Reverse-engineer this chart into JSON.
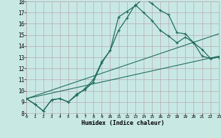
{
  "xlabel": "Humidex (Indice chaleur)",
  "xlim": [
    0,
    23
  ],
  "ylim": [
    8,
    18
  ],
  "xticks": [
    0,
    1,
    2,
    3,
    4,
    5,
    6,
    7,
    8,
    9,
    10,
    11,
    12,
    13,
    14,
    15,
    16,
    17,
    18,
    19,
    20,
    21,
    22,
    23
  ],
  "yticks": [
    8,
    9,
    10,
    11,
    12,
    13,
    14,
    15,
    16,
    17,
    18
  ],
  "bg_color": "#c8e8e4",
  "grid_color": "#b8a8b0",
  "line_color": "#1e6b5a",
  "curve1_x": [
    0,
    1,
    2,
    3,
    4,
    5,
    6,
    7,
    8,
    9,
    10,
    11,
    12,
    13,
    14,
    15,
    16,
    17,
    18,
    19,
    20,
    21,
    22,
    23
  ],
  "curve1_y": [
    9.3,
    8.8,
    8.2,
    9.2,
    9.3,
    9.0,
    9.7,
    10.1,
    10.8,
    12.5,
    13.6,
    16.6,
    17.1,
    17.6,
    18.3,
    17.8,
    17.2,
    16.8,
    15.2,
    15.1,
    14.3,
    13.7,
    12.9,
    13.0
  ],
  "curve2_x": [
    0,
    1,
    2,
    3,
    4,
    5,
    6,
    7,
    8,
    9,
    10,
    11,
    12,
    13,
    14,
    15,
    16,
    17,
    18,
    19,
    20,
    21,
    22,
    23
  ],
  "curve2_y": [
    9.3,
    8.8,
    8.2,
    9.2,
    9.3,
    9.0,
    9.6,
    10.2,
    11.0,
    12.6,
    13.6,
    15.4,
    16.5,
    17.7,
    17.0,
    16.3,
    15.4,
    14.9,
    14.3,
    14.8,
    14.3,
    13.1,
    12.9,
    13.0
  ],
  "tline1_x": [
    0,
    23
  ],
  "tline1_y": [
    9.3,
    15.1
  ],
  "tline2_x": [
    0,
    23
  ],
  "tline2_y": [
    9.3,
    13.1
  ]
}
